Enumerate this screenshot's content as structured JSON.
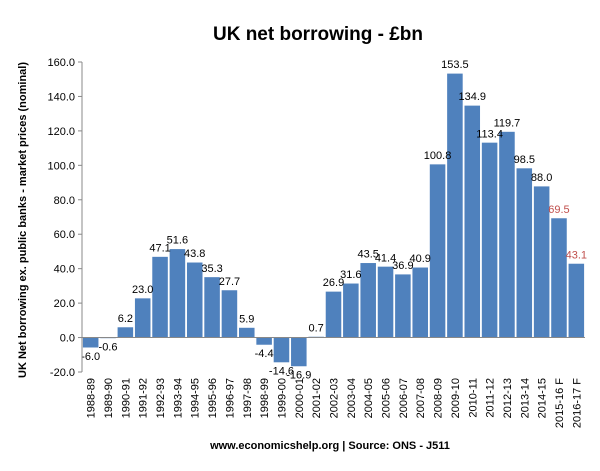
{
  "chart_data": {
    "type": "bar",
    "title": "UK net borrowing - £bn",
    "xlabel": "",
    "ylabel": "UK Net borrowing ex. public banks - market prices (nominal)",
    "source": "www.economicshelp.org | Source: ONS - J511",
    "ylim": [
      -20,
      160
    ],
    "yticks": [
      -20,
      0,
      20,
      40,
      60,
      80,
      100,
      120,
      140,
      160
    ],
    "ytick_labels": [
      "-20.0",
      "0.0",
      "20.0",
      "40.0",
      "60.0",
      "80.0",
      "100.0",
      "120.0",
      "140.0",
      "160.0"
    ],
    "grid": false,
    "legend": "none",
    "categories": [
      "1988-89",
      "1989-90",
      "1990-91",
      "1991-92",
      "1992-93",
      "1993-94",
      "1994-95",
      "1995-96",
      "1996-97",
      "1997-98",
      "1998-99",
      "1999-00",
      "2000-01",
      "2001-02",
      "2002-03",
      "2003-04",
      "2004-05",
      "2005-06",
      "2006-07",
      "2007-08",
      "2008-09",
      "2009-10",
      "2010-11",
      "2011-12",
      "2012-13",
      "2013-14",
      "2014-15",
      "2015-16 F",
      "2016-17 F"
    ],
    "values": [
      -6.0,
      -0.6,
      6.2,
      23.0,
      47.1,
      51.6,
      43.8,
      35.3,
      27.7,
      5.9,
      -4.4,
      -14.6,
      -16.9,
      0.7,
      26.9,
      31.6,
      43.5,
      41.4,
      36.9,
      40.9,
      100.8,
      153.5,
      134.9,
      113.4,
      119.7,
      98.5,
      88.0,
      69.5,
      43.1
    ],
    "data_labels": [
      "-6.0",
      "-0.6",
      "6.2",
      "23.0",
      "47.1",
      "51.6",
      "43.8",
      "35.3",
      "27.7",
      "5.9",
      "-4.4",
      "-14.6",
      "-16.9",
      "0.7",
      "26.9",
      "31.6",
      "43.5",
      "41.4",
      "36.9",
      "40.9",
      "100.8",
      "153.5",
      "134.9",
      "113.4",
      "119.7",
      "98.5",
      "88.0",
      "69.5",
      "43.1"
    ],
    "forecast_flags": [
      false,
      false,
      false,
      false,
      false,
      false,
      false,
      false,
      false,
      false,
      false,
      false,
      false,
      false,
      false,
      false,
      false,
      false,
      false,
      false,
      false,
      false,
      false,
      false,
      false,
      false,
      false,
      true,
      true
    ],
    "colors": {
      "bar": "#4f81bd",
      "label": "#000000",
      "forecast_label": "#c0504d"
    }
  }
}
